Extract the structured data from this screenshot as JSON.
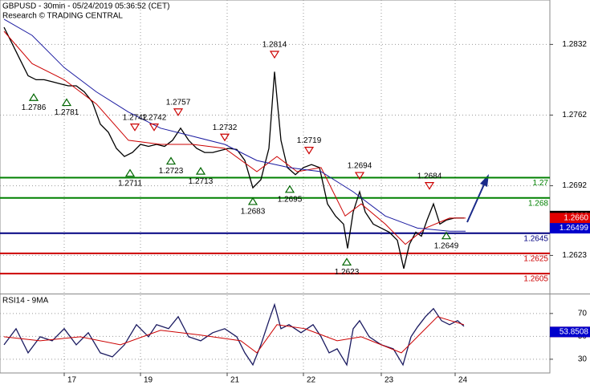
{
  "chart_data": [
    {
      "type": "line",
      "title": "GBPUSD - 30min - 05/24/2019 05:36:52 (CET)",
      "subtitle": "Research © TRADING CENTRAL",
      "xlim": [
        0,
        685
      ],
      "ylim": [
        1.2586,
        1.2876
      ],
      "yticks": [
        1.2832,
        1.2762,
        1.2692,
        1.2623
      ],
      "grid": true,
      "series": [
        {
          "color": "#000000",
          "x": [
            5,
            15,
            25,
            35,
            45,
            55,
            65,
            75,
            85,
            95,
            105,
            115,
            125,
            135,
            145,
            155,
            165,
            175,
            185,
            195,
            205,
            215,
            225,
            235,
            245,
            255,
            265,
            275,
            285,
            295,
            305,
            315,
            325,
            335,
            342,
            350,
            358,
            368,
            378,
            388,
            398,
            408,
            418,
            428,
            433,
            440,
            448,
            455,
            465,
            475,
            485,
            495,
            503,
            510,
            518,
            525,
            532,
            540,
            548,
            556,
            566,
            578
          ],
          "values": [
            1.2849,
            1.2833,
            1.2817,
            1.2801,
            1.2797,
            1.2797,
            1.2795,
            1.2793,
            1.2791,
            1.2791,
            1.2785,
            1.2775,
            1.2753,
            1.2745,
            1.2729,
            1.2721,
            1.2725,
            1.2733,
            1.2731,
            1.2733,
            1.2731,
            1.2737,
            1.2749,
            1.2737,
            1.2729,
            1.2725,
            1.2725,
            1.2727,
            1.2729,
            1.2728,
            1.2717,
            1.269,
            1.2698,
            1.2729,
            1.2805,
            1.2737,
            1.271,
            1.2703,
            1.271,
            1.2713,
            1.271,
            1.2674,
            1.2662,
            1.2654,
            1.263,
            1.2666,
            1.2686,
            1.2666,
            1.2654,
            1.265,
            1.2646,
            1.2638,
            1.261,
            1.2634,
            1.2646,
            1.2642,
            1.2658,
            1.2674,
            1.2654,
            1.2658,
            1.266,
            1.266
          ]
        },
        {
          "color": "#cc0000",
          "x": [
            5,
            40,
            80,
            120,
            160,
            200,
            240,
            280,
            320,
            345,
            370,
            400,
            430,
            450,
            480,
            505,
            530,
            560,
            580
          ],
          "values": [
            1.2845,
            1.2813,
            1.2797,
            1.2773,
            1.2737,
            1.2733,
            1.2733,
            1.2729,
            1.2706,
            1.2721,
            1.2706,
            1.271,
            1.2662,
            1.2674,
            1.2654,
            1.2634,
            1.265,
            1.266,
            1.266
          ]
        },
        {
          "color": "#1a1aa0",
          "x": [
            5,
            40,
            80,
            120,
            160,
            200,
            240,
            280,
            320,
            360,
            400,
            440,
            480,
            520,
            560,
            580
          ],
          "values": [
            1.2857,
            1.2841,
            1.2809,
            1.2785,
            1.2765,
            1.2749,
            1.2741,
            1.2733,
            1.2717,
            1.271,
            1.2706,
            1.2686,
            1.2662,
            1.265,
            1.2647,
            1.2647
          ]
        }
      ],
      "levels": [
        {
          "value": 1.27,
          "color": "#008000"
        },
        {
          "value": 1.268,
          "color": "#008000"
        },
        {
          "value": 1.2645,
          "color": "#000080"
        },
        {
          "value": 1.2625,
          "color": "#cc0000"
        },
        {
          "value": 1.2605,
          "color": "#cc0000"
        }
      ],
      "annotations": [
        {
          "x": 42,
          "value": 1.2786,
          "kind": "low"
        },
        {
          "x": 83,
          "value": 1.2781,
          "kind": "low"
        },
        {
          "x": 168,
          "value": 1.2742,
          "kind": "high"
        },
        {
          "x": 192,
          "value": 1.2742,
          "kind": "high"
        },
        {
          "x": 222,
          "value": 1.2757,
          "kind": "high"
        },
        {
          "x": 162,
          "value": 1.2711,
          "kind": "low"
        },
        {
          "x": 213,
          "value": 1.2723,
          "kind": "low"
        },
        {
          "x": 250,
          "value": 1.2713,
          "kind": "low"
        },
        {
          "x": 280,
          "value": 1.2732,
          "kind": "high"
        },
        {
          "x": 342,
          "value": 1.2814,
          "kind": "high"
        },
        {
          "x": 315,
          "value": 1.2683,
          "kind": "low"
        },
        {
          "x": 361,
          "value": 1.2695,
          "kind": "low"
        },
        {
          "x": 385,
          "value": 1.2719,
          "kind": "high"
        },
        {
          "x": 448,
          "value": 1.2694,
          "kind": "high"
        },
        {
          "x": 432,
          "value": 1.2623,
          "kind": "low"
        },
        {
          "x": 535,
          "value": 1.2684,
          "kind": "high"
        },
        {
          "x": 556,
          "value": 1.2649,
          "kind": "low"
        }
      ],
      "price_tags": [
        {
          "value": 1.2662,
          "color": "#000000"
        },
        {
          "value": 1.266,
          "label": "1.2660",
          "color": "#e00000"
        },
        {
          "value": 1.26499,
          "color": "#0000cc"
        }
      ]
    },
    {
      "type": "line",
      "title": "RSI14 - 9MA",
      "xlim": [
        0,
        685
      ],
      "ylim": [
        18,
        86
      ],
      "yticks": [
        70,
        50,
        30
      ],
      "grid": true,
      "xticks": [
        {
          "value": 80,
          "label": "17"
        },
        {
          "value": 175,
          "label": "19"
        },
        {
          "value": 283,
          "label": "21"
        },
        {
          "value": 378,
          "label": "22"
        },
        {
          "value": 475,
          "label": "23"
        },
        {
          "value": 567,
          "label": "24"
        }
      ],
      "series": [
        {
          "color": "#1a1a60",
          "x": [
            5,
            20,
            35,
            50,
            65,
            80,
            95,
            110,
            125,
            140,
            155,
            170,
            185,
            195,
            210,
            222,
            235,
            250,
            265,
            280,
            295,
            305,
            315,
            325,
            335,
            342,
            350,
            360,
            375,
            390,
            400,
            410,
            420,
            432,
            440,
            448,
            460,
            475,
            490,
            502,
            512,
            520,
            530,
            540,
            550,
            560,
            570,
            578
          ],
          "values": [
            42.6,
            56.7,
            35.6,
            49.6,
            46.1,
            56.7,
            42.6,
            53.2,
            35.6,
            32.1,
            42.6,
            60.2,
            49.6,
            60.2,
            56.7,
            67.2,
            49.6,
            46.1,
            53.2,
            56.7,
            49.6,
            35.6,
            25.1,
            42.6,
            63.7,
            77.7,
            56.7,
            60.2,
            53.2,
            60.2,
            49.6,
            35.6,
            39.1,
            25.1,
            56.7,
            63.7,
            49.6,
            42.6,
            39.1,
            25.1,
            49.6,
            58.1,
            67.2,
            74.2,
            63.7,
            60.2,
            63.7,
            58.8
          ]
        },
        {
          "color": "#cc0000",
          "x": [
            5,
            50,
            100,
            150,
            200,
            250,
            300,
            320,
            345,
            380,
            420,
            450,
            500,
            520,
            545,
            578
          ],
          "values": [
            49.6,
            46.1,
            49.6,
            42.6,
            55.3,
            51.1,
            46.1,
            35.6,
            60.2,
            56.7,
            46.1,
            49.6,
            35.6,
            49.6,
            67.2,
            60.2
          ]
        }
      ],
      "price_tags": [
        {
          "value": 53.859,
          "color": "#e00000"
        },
        {
          "value": 53.8508,
          "color": "#0000cc"
        }
      ]
    }
  ]
}
